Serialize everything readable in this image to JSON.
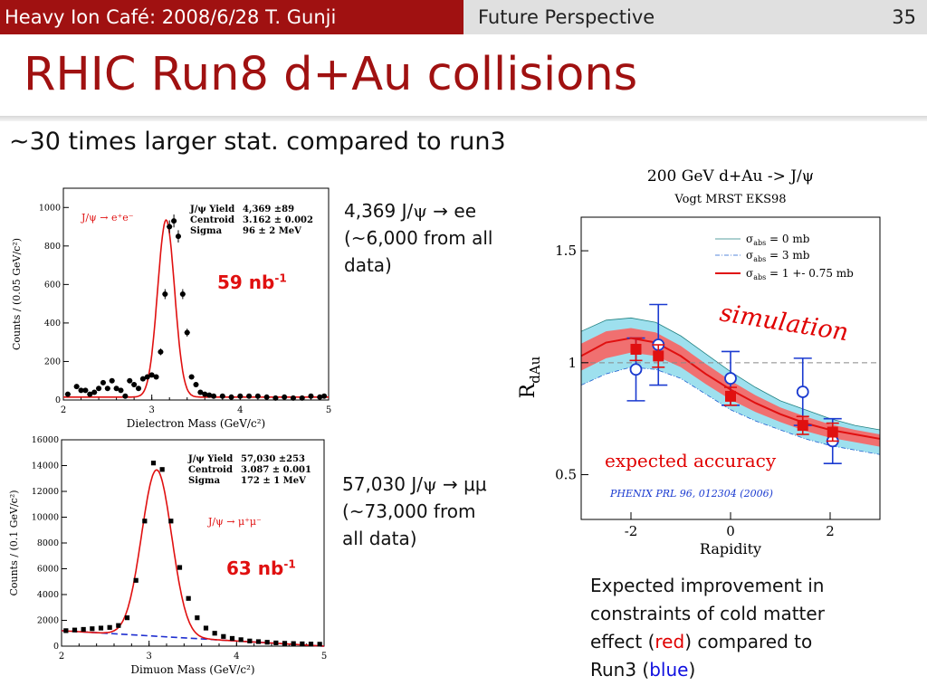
{
  "header": {
    "left": "Heavy Ion Café: 2008/6/28 T. Gunji",
    "section": "Future Perspective",
    "page": "35"
  },
  "title": "RHIC Run8 d+Au collisions",
  "subtitle": "~30 times larger stat. compared to run3",
  "note_ee": {
    "line1_pre": "4,369 J/",
    "psi": "ψ",
    "line1_post": "→ ee",
    "line2": "(~6,000 from all",
    "line3": "data)"
  },
  "note_mumu": {
    "line1_pre": "57,030 J/",
    "psi": "ψ",
    "line1_post": "→ μμ",
    "line2": "(~73,000 from",
    "line3": "all data)"
  },
  "lum_ee": {
    "value": "59 nb",
    "sup": "-1"
  },
  "lum_mumu": {
    "value": "63 nb",
    "sup": "-1"
  },
  "conclusion": {
    "line1": "Expected improvement in",
    "line2": "constraints of cold matter",
    "line3_pre": "effect (",
    "red_word": "red",
    "line3_post": ") compared to",
    "line4_pre": "Run3 (",
    "blue_word": "blue",
    "line4_post": ")"
  },
  "colors": {
    "header_red": "#a01111",
    "fit_red": "#e01010",
    "band_cyan": "#9ee0ee",
    "model_blue": "#1a3ad0"
  },
  "chart_data": [
    {
      "type": "scatter",
      "xlabel": "Dielectron Mass (GeV/c²)",
      "ylabel": "Counts / (0.05 GeV/c²)",
      "xlim": [
        2,
        5
      ],
      "ylim": [
        0,
        1100
      ],
      "xticks": [
        "2",
        "3",
        "4",
        "5"
      ],
      "yticks": [
        "0",
        "200",
        "400",
        "600",
        "800",
        "1000"
      ],
      "channel_label": "J/ψ → e⁺e⁻",
      "stats": [
        {
          "label": "J/ψ Yield",
          "value": "4,369 ±89"
        },
        {
          "label": "Centroid",
          "value": "3.162 ± 0.002"
        },
        {
          "label": "Sigma",
          "value": "96 ± 2 MeV"
        }
      ],
      "x": [
        2.05,
        2.15,
        2.2,
        2.25,
        2.3,
        2.35,
        2.4,
        2.45,
        2.5,
        2.55,
        2.6,
        2.65,
        2.7,
        2.75,
        2.8,
        2.85,
        2.9,
        2.95,
        3.0,
        3.05,
        3.1,
        3.15,
        3.2,
        3.25,
        3.3,
        3.35,
        3.4,
        3.45,
        3.5,
        3.55,
        3.6,
        3.65,
        3.7,
        3.8,
        3.9,
        4.0,
        4.1,
        4.2,
        4.3,
        4.4,
        4.5,
        4.6,
        4.7,
        4.8,
        4.9,
        4.95
      ],
      "values": [
        30,
        70,
        50,
        50,
        30,
        40,
        60,
        90,
        60,
        100,
        60,
        50,
        20,
        100,
        80,
        60,
        110,
        120,
        130,
        120,
        250,
        550,
        900,
        930,
        850,
        550,
        350,
        120,
        80,
        40,
        30,
        25,
        20,
        20,
        15,
        20,
        20,
        20,
        15,
        10,
        15,
        10,
        10,
        20,
        15,
        20
      ]
    },
    {
      "type": "scatter",
      "xlabel": "Dimuon Mass (GeV/c²)",
      "ylabel": "Counts / (0.1 GeV/c²)",
      "xlim": [
        2,
        5
      ],
      "ylim": [
        0,
        16000
      ],
      "xticks": [
        "2",
        "3",
        "4",
        "5"
      ],
      "yticks": [
        "0",
        "2000",
        "4000",
        "6000",
        "8000",
        "10000",
        "12000",
        "14000",
        "16000"
      ],
      "channel_label": "J/ψ → μ⁺μ⁻",
      "stats": [
        {
          "label": "J/ψ Yield",
          "value": "57,030 ±253"
        },
        {
          "label": "Centroid",
          "value": "3.087 ± 0.001"
        },
        {
          "label": "Sigma",
          "value": "172 ± 1 MeV"
        }
      ],
      "x": [
        2.05,
        2.15,
        2.25,
        2.35,
        2.45,
        2.55,
        2.65,
        2.75,
        2.85,
        2.95,
        3.05,
        3.15,
        3.25,
        3.35,
        3.45,
        3.55,
        3.65,
        3.75,
        3.85,
        3.95,
        4.05,
        4.15,
        4.25,
        4.35,
        4.45,
        4.55,
        4.65,
        4.75,
        4.85,
        4.95
      ],
      "values": [
        1200,
        1250,
        1300,
        1350,
        1400,
        1450,
        1600,
        2200,
        5100,
        9700,
        14200,
        13700,
        9700,
        6100,
        3700,
        2200,
        1400,
        1000,
        750,
        600,
        500,
        400,
        350,
        300,
        250,
        220,
        200,
        180,
        160,
        150
      ]
    },
    {
      "type": "line",
      "title": "200 GeV d+Au -> J/ψ",
      "subtitle": "Vogt MRST EKS98",
      "xlabel": "Rapidity",
      "ylabel": "R",
      "ylabel_sub": "dAu",
      "xlim": [
        -3,
        3
      ],
      "ylim": [
        0.3,
        1.65
      ],
      "xticks": [
        "-2",
        "0",
        "2"
      ],
      "yticks": [
        "0.5",
        "1",
        "1.5"
      ],
      "legend": [
        {
          "label": "σ",
          "sub": "abs",
          "eq": "= 0 mb"
        },
        {
          "label": "σ",
          "sub": "abs",
          "eq": "= 3 mb"
        },
        {
          "label": "σ",
          "sub": "abs",
          "eq": "= 1 +- 0.75 mb"
        }
      ],
      "annotations": {
        "simulation": "simulation",
        "accuracy": "expected accuracy",
        "citation": "PHENIX PRL 96, 012304 (2006)"
      },
      "model_x": [
        -3,
        -2.5,
        -2,
        -1.5,
        -1,
        -0.5,
        0,
        0.5,
        1,
        1.5,
        2,
        2.5,
        3
      ],
      "model_center": [
        1.03,
        1.09,
        1.11,
        1.09,
        1.03,
        0.95,
        0.88,
        0.82,
        0.77,
        0.73,
        0.7,
        0.68,
        0.66
      ],
      "model_upper": [
        1.14,
        1.19,
        1.2,
        1.18,
        1.12,
        1.04,
        0.96,
        0.89,
        0.83,
        0.79,
        0.75,
        0.72,
        0.7
      ],
      "model_lower": [
        0.9,
        0.95,
        0.98,
        0.97,
        0.93,
        0.86,
        0.79,
        0.74,
        0.7,
        0.66,
        0.63,
        0.61,
        0.59
      ],
      "run8": {
        "x": [
          -1.9,
          -1.45,
          0,
          1.45,
          2.05
        ],
        "y": [
          1.06,
          1.03,
          0.85,
          0.72,
          0.69
        ],
        "err": [
          0.05,
          0.05,
          0.04,
          0.04,
          0.04
        ]
      },
      "run3": {
        "x": [
          -1.9,
          -1.45,
          0,
          1.45,
          2.05
        ],
        "y": [
          0.97,
          1.08,
          0.93,
          0.87,
          0.65
        ],
        "err": [
          0.14,
          0.18,
          0.12,
          0.15,
          0.1
        ]
      }
    }
  ]
}
